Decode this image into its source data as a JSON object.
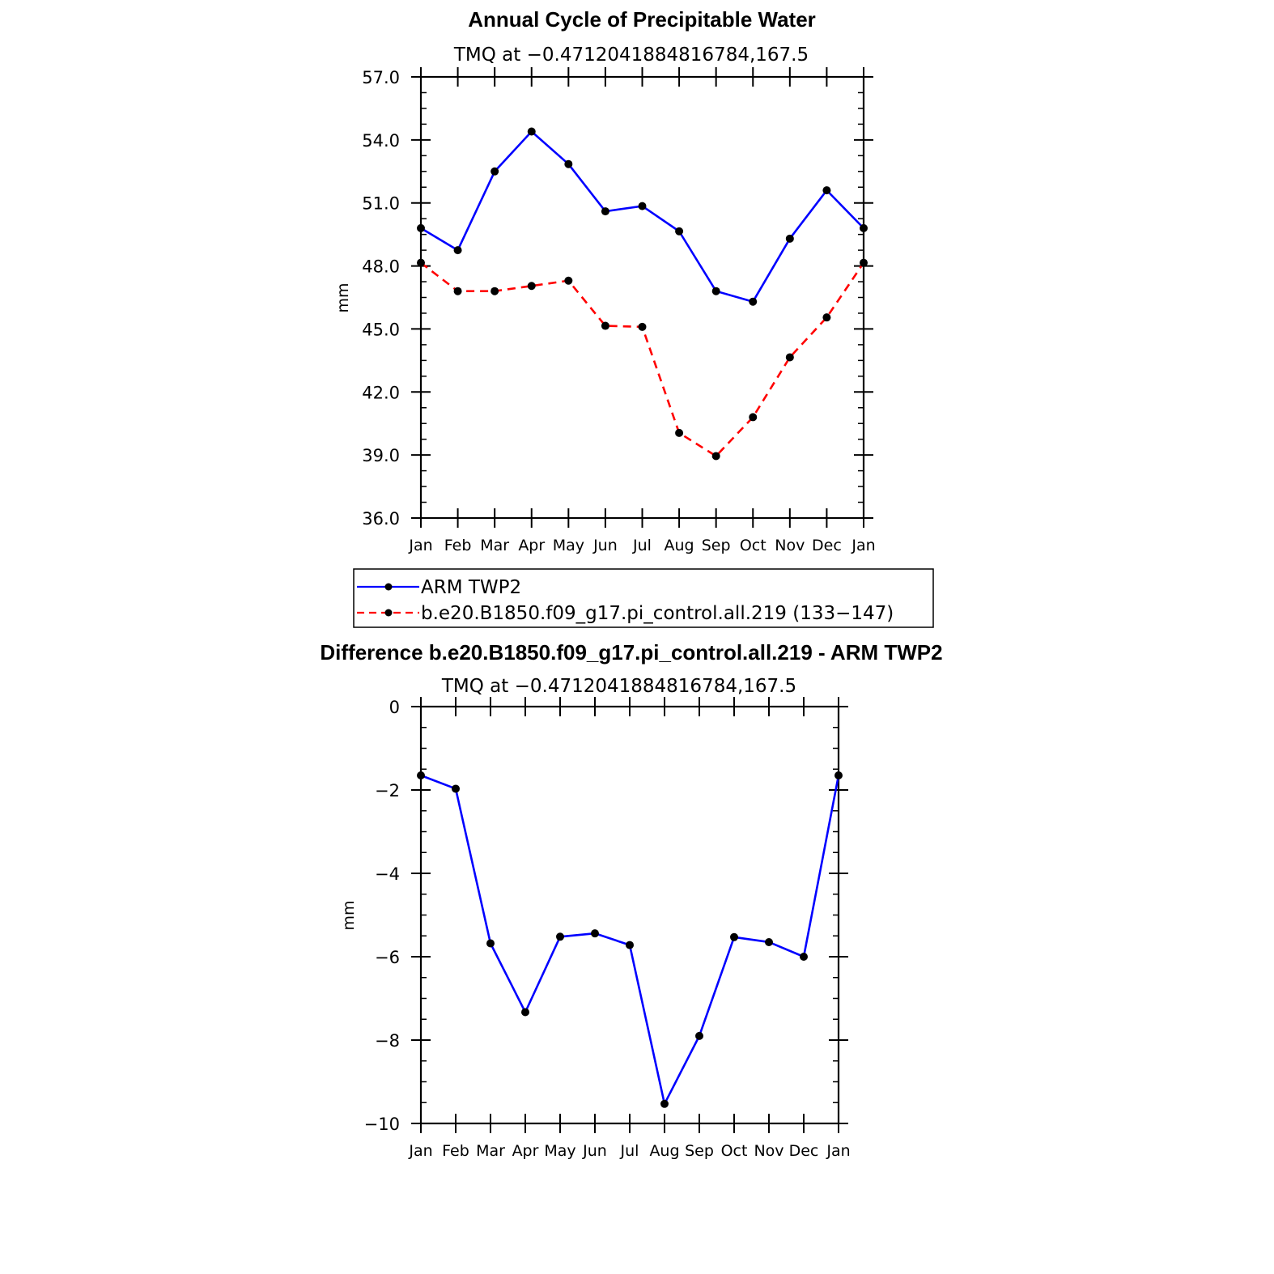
{
  "chart_data": [
    {
      "type": "line",
      "title": "Annual Cycle of Precipitable Water",
      "subtitle": "TMQ at −0.4712041884816784,167.5",
      "ylabel": "mm",
      "ylim": [
        36.0,
        57.0
      ],
      "yticks": [
        "36.0",
        "39.0",
        "42.0",
        "45.0",
        "48.0",
        "51.0",
        "54.0",
        "57.0"
      ],
      "categories": [
        "Jan",
        "Feb",
        "Mar",
        "Apr",
        "May",
        "Jun",
        "Jul",
        "Aug",
        "Sep",
        "Oct",
        "Nov",
        "Dec",
        "Jan"
      ],
      "series": [
        {
          "name": "ARM TWP2",
          "color": "#0000ff",
          "dash": "solid",
          "values": [
            49.8,
            48.75,
            52.5,
            54.4,
            52.85,
            50.6,
            50.85,
            49.65,
            46.8,
            46.3,
            49.3,
            51.6,
            49.8
          ]
        },
        {
          "name": "b.e20.B1850.f09_g17.pi_control.all.219 (133−147)",
          "color": "#ff0000",
          "dash": "dashed",
          "values": [
            48.15,
            46.8,
            46.8,
            47.05,
            47.3,
            45.15,
            45.1,
            40.05,
            38.95,
            40.8,
            43.65,
            45.55,
            48.15
          ]
        }
      ],
      "legend": "below"
    },
    {
      "type": "line",
      "title": "Difference b.e20.B1850.f09_g17.pi_control.all.219 - ARM TWP2",
      "subtitle": "TMQ at −0.4712041884816784,167.5",
      "ylabel": "mm",
      "ylim": [
        -10,
        0
      ],
      "yticks": [
        "−10",
        "−8",
        "−6",
        "−4",
        "−2",
        "0"
      ],
      "categories": [
        "Jan",
        "Feb",
        "Mar",
        "Apr",
        "May",
        "Jun",
        "Jul",
        "Aug",
        "Sep",
        "Oct",
        "Nov",
        "Dec",
        "Jan"
      ],
      "series": [
        {
          "color": "#0000ff",
          "dash": "solid",
          "values": [
            -1.65,
            -1.97,
            -5.68,
            -7.33,
            -5.52,
            -5.44,
            -5.72,
            -9.53,
            -7.9,
            -5.53,
            -5.65,
            -6.0,
            -1.65
          ]
        }
      ]
    }
  ]
}
